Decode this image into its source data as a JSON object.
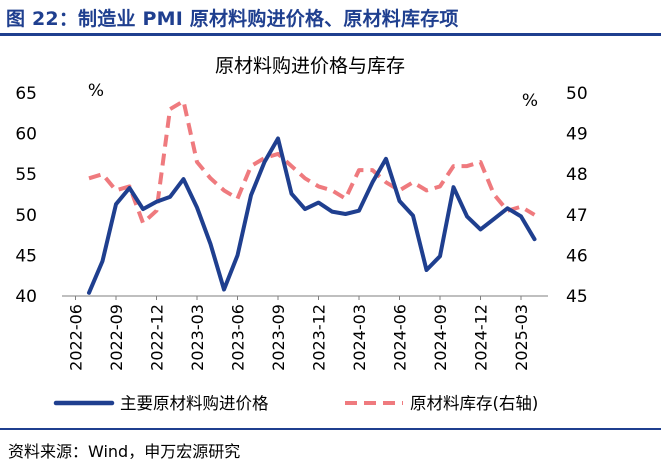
{
  "figure": {
    "title": "图 22：制造业 PMI 原材料购进价格、原材料库存项",
    "source": "资料来源：Wind，申万宏源研究"
  },
  "colors": {
    "brand": "#1f3f8f",
    "series_price": "#1f3f8f",
    "series_inventory": "#ef7a7e"
  },
  "chart_data": {
    "type": "line",
    "title": "原材料购进价格与库存",
    "left_axis": {
      "unit": "%",
      "ylim": [
        40,
        65
      ],
      "ticks": [
        40,
        45,
        50,
        55,
        60,
        65
      ]
    },
    "right_axis": {
      "unit": "%",
      "ylim": [
        45,
        50
      ],
      "ticks": [
        45,
        46,
        47,
        48,
        49,
        50
      ]
    },
    "x_tick_labels": [
      "2022-06",
      "2022-09",
      "2022-12",
      "2023-03",
      "2023-06",
      "2023-09",
      "2023-12",
      "2024-03",
      "2024-06",
      "2024-09",
      "2024-12",
      "2025-03"
    ],
    "x": [
      "2022-07",
      "2022-08",
      "2022-09",
      "2022-10",
      "2022-11",
      "2022-12",
      "2023-01",
      "2023-02",
      "2023-03",
      "2023-04",
      "2023-05",
      "2023-06",
      "2023-07",
      "2023-08",
      "2023-09",
      "2023-10",
      "2023-11",
      "2023-12",
      "2024-01",
      "2024-02",
      "2024-03",
      "2024-04",
      "2024-05",
      "2024-06",
      "2024-07",
      "2024-08",
      "2024-09",
      "2024-10",
      "2024-11",
      "2024-12",
      "2025-01",
      "2025-02",
      "2025-03",
      "2025-04"
    ],
    "series": [
      {
        "name": "主要原材料购进价格",
        "axis": "left",
        "style": "solid",
        "values": [
          40.4,
          44.3,
          51.3,
          53.3,
          50.7,
          51.6,
          52.2,
          54.4,
          50.9,
          46.4,
          40.8,
          45.0,
          52.4,
          56.5,
          59.4,
          52.6,
          50.7,
          51.5,
          50.4,
          50.1,
          50.5,
          54.0,
          56.9,
          51.7,
          49.9,
          43.2,
          44.9,
          53.4,
          49.8,
          48.2,
          49.5,
          50.8,
          49.8,
          47.0
        ]
      },
      {
        "name": "原材料库存(右轴)",
        "axis": "right",
        "style": "dashed",
        "values": [
          47.9,
          48.0,
          47.6,
          47.7,
          46.8,
          47.1,
          49.6,
          49.8,
          48.3,
          47.9,
          47.6,
          47.4,
          48.2,
          48.4,
          48.5,
          48.2,
          47.9,
          47.7,
          47.6,
          47.4,
          48.1,
          48.1,
          47.8,
          47.6,
          47.8,
          47.6,
          47.7,
          48.2,
          48.2,
          48.3,
          47.5,
          47.1,
          47.2,
          47.0
        ]
      }
    ],
    "grid": false,
    "legend": "bottom"
  }
}
